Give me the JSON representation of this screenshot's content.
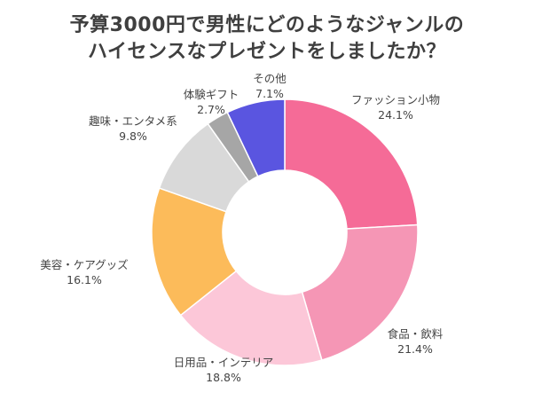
{
  "title_lines": [
    "予算3000円で男性にどのようなジャンルの",
    "ハイセンスなプレゼントをしましたか？"
  ],
  "chart_data": {
    "type": "pie",
    "variant": "donut",
    "title": "予算3000円で男性にどのようなジャンルのハイセンスなプレゼントをしましたか？",
    "categories": [
      "ファッション小物",
      "食品・飲料",
      "日用品・インテリア",
      "美容・ケアグッズ",
      "趣味・エンタメ系",
      "体験ギフト",
      "その他"
    ],
    "values": [
      24.1,
      21.4,
      18.8,
      16.1,
      9.8,
      2.7,
      7.1
    ],
    "value_labels": [
      "24.1%",
      "21.4%",
      "18.8%",
      "16.1%",
      "9.8%",
      "2.7%",
      "7.1%"
    ],
    "colors": [
      "#f56b97",
      "#f596b5",
      "#fcc7d8",
      "#fcbb5a",
      "#d9d9d9",
      "#a6a6a6",
      "#5a55e0"
    ],
    "unit": "%",
    "start": "top, clockwise"
  }
}
